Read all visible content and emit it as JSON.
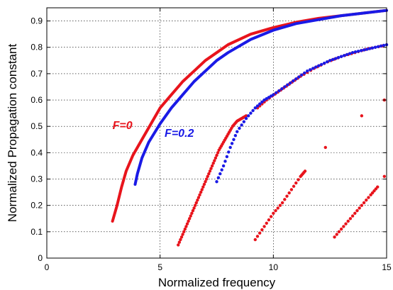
{
  "chart_data": {
    "type": "scatter",
    "title": "",
    "xlabel": "Normalized frequency",
    "ylabel": "Normalized Propagation constant",
    "xlim": [
      0,
      15
    ],
    "ylim": [
      0,
      0.95
    ],
    "xticks": [
      0,
      5,
      10,
      15
    ],
    "xtick_labels": [
      "0",
      "5",
      "10",
      "15"
    ],
    "yticks": [
      0,
      0.1,
      0.2,
      0.3,
      0.4,
      0.5,
      0.6,
      0.7,
      0.8,
      0.9
    ],
    "ytick_labels": [
      "0",
      "0.1",
      "0.2",
      "0.3",
      "0.4",
      "0.5",
      "0.6",
      "0.7",
      "0.8",
      "0.9"
    ],
    "grid": true,
    "annotations": [
      {
        "text": "F=0",
        "x": 2.9,
        "y": 0.49,
        "color": "#e8141c"
      },
      {
        "text": "F=0.2",
        "x": 5.2,
        "y": 0.46,
        "color": "#1a1ae6"
      }
    ],
    "series": [
      {
        "color": "#e8141c",
        "kind": "line",
        "points": [
          [
            2.9,
            0.14
          ],
          [
            3.1,
            0.2
          ],
          [
            3.3,
            0.27
          ],
          [
            3.5,
            0.33
          ],
          [
            3.8,
            0.39
          ],
          [
            4.2,
            0.45
          ],
          [
            4.6,
            0.51
          ],
          [
            5.0,
            0.57
          ],
          [
            5.5,
            0.62
          ],
          [
            6.0,
            0.67
          ],
          [
            6.5,
            0.71
          ],
          [
            7.0,
            0.75
          ],
          [
            7.5,
            0.78
          ],
          [
            8.0,
            0.81
          ],
          [
            9.0,
            0.85
          ],
          [
            10.0,
            0.875
          ],
          [
            11.0,
            0.895
          ],
          [
            12.0,
            0.91
          ],
          [
            13.0,
            0.92
          ],
          [
            14.0,
            0.93
          ],
          [
            15.0,
            0.94
          ]
        ]
      },
      {
        "color": "#1a1ae6",
        "kind": "line",
        "points": [
          [
            3.9,
            0.28
          ],
          [
            4.0,
            0.32
          ],
          [
            4.2,
            0.38
          ],
          [
            4.5,
            0.44
          ],
          [
            5.0,
            0.51
          ],
          [
            5.5,
            0.57
          ],
          [
            6.0,
            0.62
          ],
          [
            6.5,
            0.67
          ],
          [
            7.0,
            0.71
          ],
          [
            7.5,
            0.75
          ],
          [
            8.0,
            0.78
          ],
          [
            9.0,
            0.83
          ],
          [
            10.0,
            0.865
          ],
          [
            11.0,
            0.89
          ],
          [
            12.0,
            0.905
          ],
          [
            13.0,
            0.92
          ],
          [
            14.0,
            0.93
          ],
          [
            15.0,
            0.94
          ]
        ]
      },
      {
        "color": "#e8141c",
        "kind": "dots",
        "points": [
          [
            5.8,
            0.05
          ],
          [
            6.0,
            0.09
          ],
          [
            6.2,
            0.13
          ],
          [
            6.4,
            0.17
          ],
          [
            6.6,
            0.21
          ],
          [
            6.8,
            0.25
          ],
          [
            7.0,
            0.29
          ],
          [
            7.2,
            0.33
          ],
          [
            7.4,
            0.37
          ],
          [
            7.6,
            0.41
          ],
          [
            7.8,
            0.44
          ],
          [
            8.0,
            0.47
          ],
          [
            8.2,
            0.5
          ],
          [
            8.4,
            0.52
          ],
          [
            8.6,
            0.53
          ],
          [
            8.8,
            0.54
          ]
        ]
      },
      {
        "color": "#e8141c",
        "kind": "dots",
        "points": [
          [
            9.3,
            0.57
          ],
          [
            9.7,
            0.6
          ],
          [
            10.2,
            0.63
          ],
          [
            10.7,
            0.66
          ],
          [
            11.2,
            0.69
          ],
          [
            11.8,
            0.72
          ],
          [
            12.4,
            0.745
          ],
          [
            13.0,
            0.765
          ],
          [
            13.6,
            0.78
          ],
          [
            14.2,
            0.795
          ],
          [
            14.8,
            0.805
          ]
        ]
      },
      {
        "color": "#1a1ae6",
        "kind": "dots",
        "points": [
          [
            7.5,
            0.29
          ],
          [
            7.8,
            0.35
          ],
          [
            8.1,
            0.42
          ],
          [
            8.4,
            0.48
          ],
          [
            8.8,
            0.53
          ],
          [
            9.2,
            0.57
          ],
          [
            9.6,
            0.6
          ],
          [
            10.0,
            0.62
          ],
          [
            10.5,
            0.65
          ],
          [
            11.0,
            0.68
          ],
          [
            11.5,
            0.71
          ],
          [
            12.0,
            0.73
          ],
          [
            12.5,
            0.75
          ],
          [
            13.0,
            0.765
          ],
          [
            13.5,
            0.78
          ],
          [
            14.0,
            0.79
          ],
          [
            14.5,
            0.8
          ],
          [
            15.0,
            0.81
          ]
        ]
      },
      {
        "color": "#e8141c",
        "kind": "dots",
        "points": [
          [
            9.2,
            0.07
          ],
          [
            9.6,
            0.12
          ],
          [
            10.0,
            0.17
          ],
          [
            10.4,
            0.21
          ],
          [
            10.8,
            0.26
          ],
          [
            11.2,
            0.31
          ],
          [
            11.4,
            0.33
          ]
        ]
      },
      {
        "color": "#e8141c",
        "kind": "dots",
        "points": [
          [
            12.7,
            0.08
          ],
          [
            13.1,
            0.12
          ],
          [
            13.5,
            0.16
          ],
          [
            13.9,
            0.2
          ],
          [
            14.3,
            0.24
          ],
          [
            14.6,
            0.27
          ]
        ]
      },
      {
        "color": "#e8141c",
        "kind": "dots",
        "points": [
          [
            12.3,
            0.42
          ],
          [
            13.9,
            0.54
          ],
          [
            14.9,
            0.6
          ],
          [
            14.9,
            0.31
          ]
        ]
      }
    ]
  }
}
